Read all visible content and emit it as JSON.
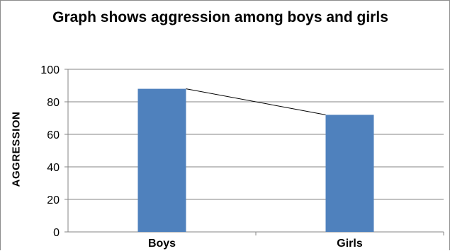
{
  "chart_data": {
    "type": "bar",
    "title": "Graph shows aggression among boys and girls",
    "xlabel": "",
    "ylabel": "AGGRESSION",
    "categories": [
      "Boys",
      "Girls"
    ],
    "values": [
      88,
      72
    ],
    "ylim": [
      0,
      100
    ],
    "yticks": [
      0,
      20,
      40,
      60,
      80,
      100
    ],
    "grid": true,
    "legend": "none",
    "overlay": "line connecting bar tops",
    "colors": {
      "bar": "#4f81bd",
      "grid": "#868686",
      "line": "#000000"
    }
  }
}
